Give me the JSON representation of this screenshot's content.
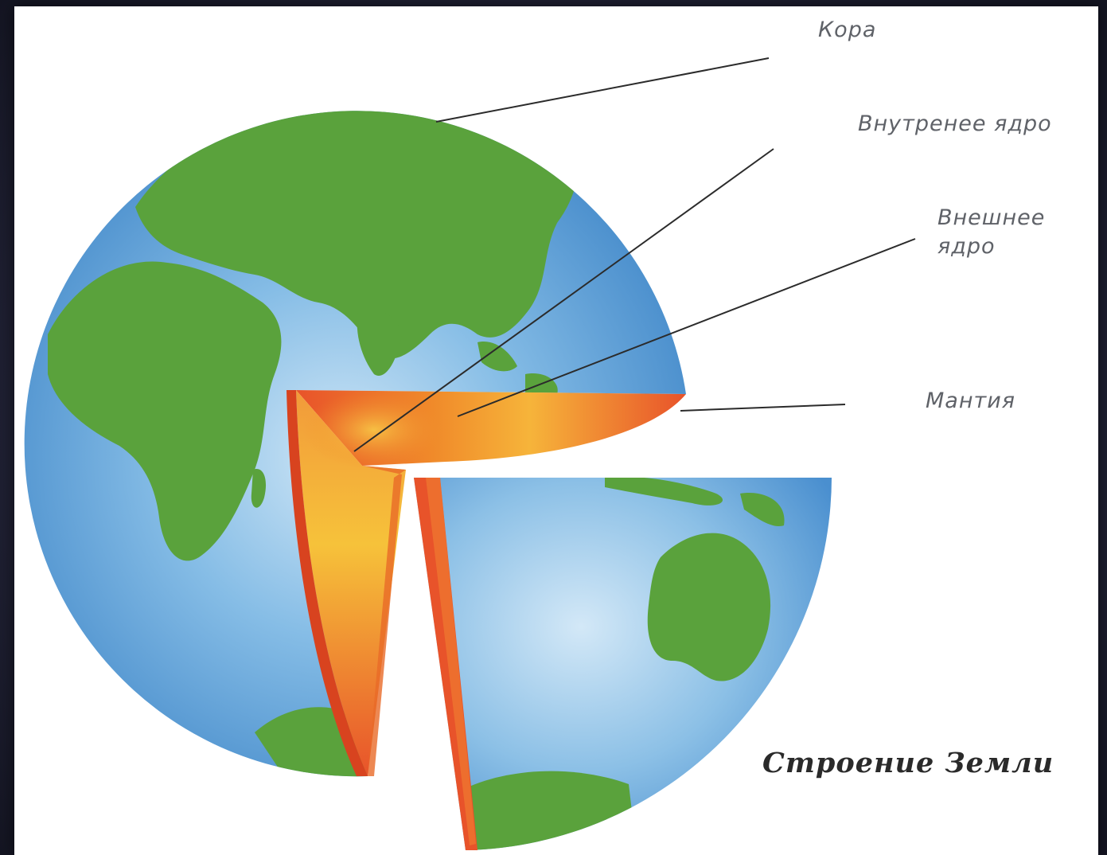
{
  "labels": {
    "crust": "Кора",
    "inner_core": "Внутренее ядро",
    "outer_core": "Внешнее ядро",
    "mantle": "Мантия"
  },
  "title": "Строение Земли",
  "colors": {
    "ocean": "#4f96d4",
    "ocean_light": "#b9d9f0",
    "land": "#5aa23c",
    "mantle_red": "#e8532a",
    "core_orange": "#f08a2a",
    "core_yellow": "#f6c23a",
    "leader_line": "#2b2b2b"
  }
}
